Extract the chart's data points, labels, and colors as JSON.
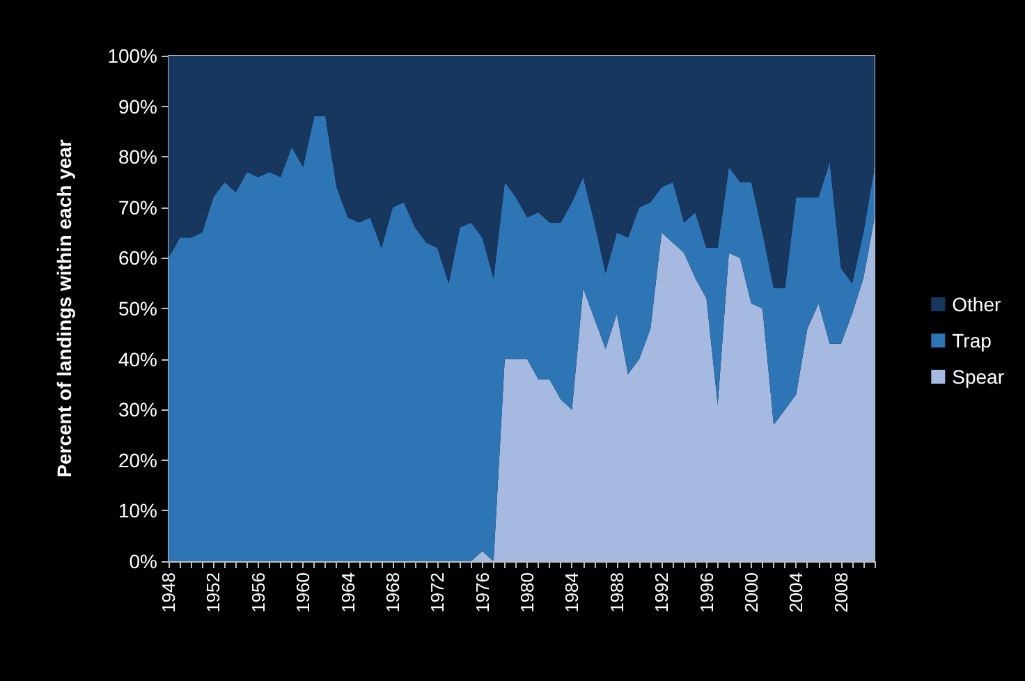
{
  "chart_data": {
    "type": "area",
    "stacked": true,
    "ylabel": "Percent of landings within each year",
    "categories": [
      "1948",
      null,
      null,
      null,
      "1952",
      null,
      null,
      null,
      "1956",
      null,
      null,
      null,
      "1960",
      null,
      null,
      null,
      "1964",
      null,
      null,
      null,
      "1968",
      null,
      null,
      null,
      "1972",
      null,
      null,
      null,
      "1976",
      null,
      null,
      null,
      "1980",
      null,
      null,
      null,
      "1984",
      null,
      null,
      null,
      "1988",
      null,
      null,
      null,
      "1992",
      null,
      null,
      null,
      "1996",
      null,
      null,
      null,
      "2000",
      null,
      null,
      null,
      "2004",
      null,
      null,
      null,
      "2008",
      null,
      null,
      null
    ],
    "series": [
      {
        "name": "Spear",
        "color": "#a6b9e0",
        "values": [
          0,
          0,
          0,
          0,
          0,
          0,
          0,
          0,
          0,
          0,
          0,
          0,
          0,
          0,
          0,
          0,
          0,
          0,
          0,
          0,
          0,
          0,
          0,
          0,
          0,
          0,
          0,
          0,
          2,
          0,
          40,
          40,
          40,
          36,
          36,
          32,
          30,
          54,
          48,
          42,
          49,
          37,
          40,
          46,
          65,
          63,
          61,
          56,
          52,
          31,
          61,
          60,
          51,
          50,
          27,
          30,
          33,
          46,
          51,
          43,
          43,
          49,
          56,
          68
        ]
      },
      {
        "name": "Trap",
        "color": "#2e75b6",
        "values": [
          60,
          64,
          64,
          65,
          72,
          75,
          73,
          77,
          76,
          77,
          76,
          82,
          78,
          88,
          88,
          74,
          68,
          67,
          68,
          62,
          70,
          71,
          66,
          63,
          62,
          55,
          66,
          67,
          62,
          56,
          35,
          32,
          28,
          33,
          31,
          35,
          41,
          22,
          19,
          15,
          16,
          27,
          30,
          25,
          9,
          12,
          6,
          13,
          10,
          31,
          17,
          15,
          24,
          15,
          27,
          24,
          39,
          26,
          21,
          36,
          15,
          6,
          9,
          10
        ]
      },
      {
        "name": "Other",
        "color": "#17375e",
        "values": [
          40,
          36,
          36,
          35,
          28,
          25,
          27,
          23,
          24,
          23,
          24,
          18,
          22,
          12,
          12,
          26,
          32,
          33,
          32,
          38,
          30,
          29,
          34,
          37,
          38,
          45,
          34,
          33,
          36,
          44,
          25,
          28,
          32,
          31,
          33,
          33,
          29,
          24,
          33,
          43,
          35,
          36,
          30,
          29,
          26,
          25,
          33,
          31,
          38,
          38,
          22,
          25,
          25,
          35,
          46,
          46,
          28,
          28,
          28,
          21,
          42,
          45,
          35,
          22
        ]
      }
    ],
    "ylim": [
      0,
      100
    ],
    "yticks": [
      {
        "value": 0,
        "label": "0%"
      },
      {
        "value": 10,
        "label": "10%"
      },
      {
        "value": 20,
        "label": "20%"
      },
      {
        "value": 30,
        "label": "30%"
      },
      {
        "value": 40,
        "label": "40%"
      },
      {
        "value": 50,
        "label": "50%"
      },
      {
        "value": 60,
        "label": "60%"
      },
      {
        "value": 70,
        "label": "70%"
      },
      {
        "value": 80,
        "label": "80%"
      },
      {
        "value": 90,
        "label": "90%"
      },
      {
        "value": 100,
        "label": "100%"
      }
    ],
    "grid": false,
    "legend": "right"
  }
}
